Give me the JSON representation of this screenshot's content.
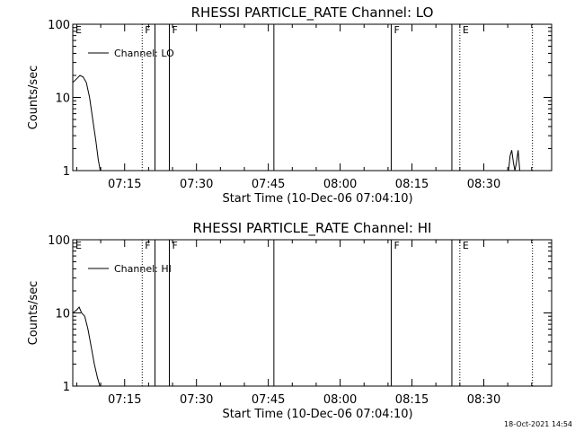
{
  "footer_timestamp": "18-Oct-2021 14:54",
  "chart_data": [
    {
      "type": "line",
      "title": "RHESSI PARTICLE_RATE Channel: LO",
      "xlabel": "Start Time (10-Dec-06 07:04:10)",
      "ylabel": "Counts/sec",
      "yscale": "log",
      "ylim": [
        1,
        100
      ],
      "xlim": [
        "07:04:10",
        "08:44:10"
      ],
      "grid": false,
      "legend_position": "top-left",
      "x_ticks": [
        "07:15",
        "07:30",
        "07:45",
        "08:00",
        "08:15",
        "08:30"
      ],
      "y_ticks": [
        "1",
        "10",
        "100"
      ],
      "series": [
        {
          "name": "Channel: LO",
          "x": [
            "07:04:10",
            "07:05:00",
            "07:05:40",
            "07:06:20",
            "07:07:00",
            "07:07:40",
            "07:08:20",
            "07:09:00",
            "07:09:30",
            "07:09:55",
            "08:35:10",
            "08:35:30",
            "08:35:50",
            "08:36:10",
            "08:36:30",
            "08:36:50",
            "08:37:10",
            "08:37:30"
          ],
          "values": [
            16,
            18,
            20,
            19,
            16,
            10,
            5,
            2.5,
            1.4,
            1,
            1,
            1.6,
            1.9,
            1.3,
            1,
            1.3,
            1.9,
            1
          ]
        }
      ],
      "markers": [
        {
          "time": "07:04:10",
          "label": "E",
          "style": "solid"
        },
        {
          "time": "07:18:40",
          "label": "F",
          "style": "dotted"
        },
        {
          "time": "07:21:20",
          "label": "",
          "style": "solid"
        },
        {
          "time": "07:24:20",
          "label": "F",
          "style": "solid"
        },
        {
          "time": "07:46:10",
          "label": "",
          "style": "solid"
        },
        {
          "time": "08:10:40",
          "label": "F",
          "style": "solid"
        },
        {
          "time": "08:23:20",
          "label": "",
          "style": "solid"
        },
        {
          "time": "08:25:00",
          "label": "E",
          "style": "dotted"
        },
        {
          "time": "08:40:10",
          "label": "",
          "style": "dotted"
        }
      ]
    },
    {
      "type": "line",
      "title": "RHESSI PARTICLE_RATE Channel: HI",
      "xlabel": "Start Time (10-Dec-06 07:04:10)",
      "ylabel": "Counts/sec",
      "yscale": "log",
      "ylim": [
        1,
        100
      ],
      "xlim": [
        "07:04:10",
        "08:44:10"
      ],
      "grid": false,
      "legend_position": "top-left",
      "x_ticks": [
        "07:15",
        "07:30",
        "07:45",
        "08:00",
        "08:15",
        "08:30"
      ],
      "y_ticks": [
        "1",
        "10",
        "100"
      ],
      "series": [
        {
          "name": "Channel: HI",
          "x": [
            "07:04:10",
            "07:05:00",
            "07:05:30",
            "07:06:00",
            "07:06:40",
            "07:07:20",
            "07:08:00",
            "07:08:40",
            "07:09:20",
            "07:09:50"
          ],
          "values": [
            10,
            11,
            12,
            10,
            9,
            6,
            3.5,
            2,
            1.3,
            1
          ]
        }
      ],
      "markers": [
        {
          "time": "07:04:10",
          "label": "E",
          "style": "solid"
        },
        {
          "time": "07:18:40",
          "label": "F",
          "style": "dotted"
        },
        {
          "time": "07:21:20",
          "label": "",
          "style": "solid"
        },
        {
          "time": "07:24:20",
          "label": "F",
          "style": "solid"
        },
        {
          "time": "07:46:10",
          "label": "",
          "style": "solid"
        },
        {
          "time": "08:10:40",
          "label": "F",
          "style": "solid"
        },
        {
          "time": "08:23:20",
          "label": "",
          "style": "solid"
        },
        {
          "time": "08:25:00",
          "label": "E",
          "style": "dotted"
        },
        {
          "time": "08:40:10",
          "label": "",
          "style": "dotted"
        }
      ]
    }
  ]
}
